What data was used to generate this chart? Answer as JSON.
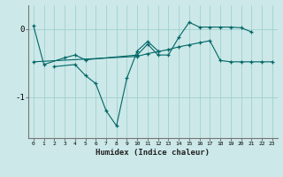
{
  "xlabel": "Humidex (Indice chaleur)",
  "bg_color": "#cce8e8",
  "line_color": "#006666",
  "grid_color": "#99cccc",
  "line1_x": [
    0,
    1,
    3,
    4,
    5,
    10,
    11,
    12,
    13,
    14,
    15,
    16,
    17,
    18,
    19,
    20,
    21
  ],
  "line1_y": [
    0.05,
    -0.52,
    -0.42,
    -0.38,
    -0.45,
    -0.38,
    -0.22,
    -0.38,
    -0.38,
    -0.12,
    0.1,
    0.03,
    0.03,
    0.03,
    0.03,
    0.02,
    -0.04
  ],
  "line2_x": [
    2,
    4,
    5,
    6,
    7,
    8,
    9,
    10,
    11,
    12
  ],
  "line2_y": [
    -0.55,
    -0.52,
    -0.68,
    -0.8,
    -1.2,
    -1.42,
    -0.72,
    -0.32,
    -0.18,
    -0.32
  ],
  "line3_x": [
    0,
    10,
    11,
    12,
    13,
    14,
    15,
    16,
    17,
    18,
    19,
    20,
    21,
    22,
    23
  ],
  "line3_y": [
    -0.48,
    -0.4,
    -0.36,
    -0.33,
    -0.3,
    -0.26,
    -0.23,
    -0.2,
    -0.17,
    -0.46,
    -0.48,
    -0.48,
    -0.48,
    -0.48,
    -0.48
  ],
  "ylim": [
    -1.6,
    0.35
  ],
  "yticks": [
    -1,
    0
  ],
  "xlim": [
    -0.5,
    23.5
  ],
  "figsize": [
    3.2,
    2.0
  ],
  "dpi": 100
}
